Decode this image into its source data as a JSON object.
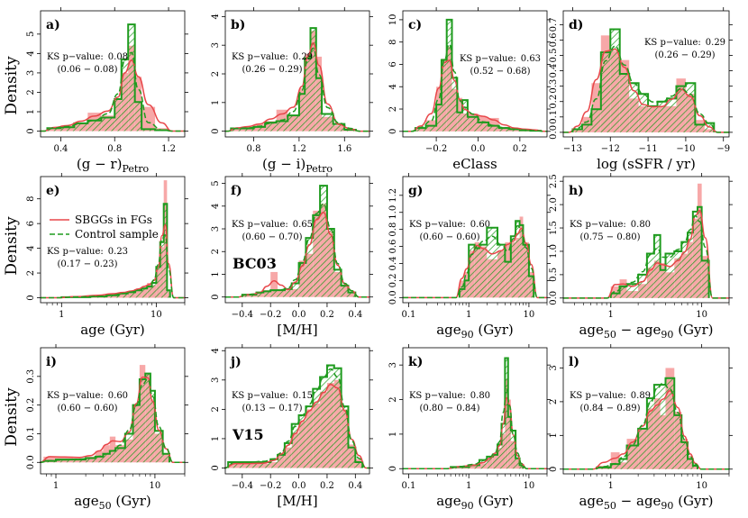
{
  "figure": {
    "y_axis_label": "Density",
    "legend": {
      "sample_label": "SBGGs in FGs",
      "control_label": "Control sample"
    },
    "colors": {
      "sample_fill": "#f7a8a8",
      "sample_line": "#e8474a",
      "control_line": "#1e9b1e"
    }
  },
  "chart_data": [
    {
      "id": "a",
      "type": "bar",
      "panel_label": "a)",
      "xlabel": "(g − r)",
      "xlabel_sub": "Petro",
      "xlim": [
        0.25,
        1.32
      ],
      "ylim": [
        -0.3,
        6.2
      ],
      "xticks": [
        0.4,
        0.8,
        1.2
      ],
      "xtick_labels": [
        "0.4",
        "0.8",
        "1.2"
      ],
      "yticks": [
        0,
        1,
        2,
        3,
        4,
        5
      ],
      "ytick_labels": [
        "0",
        "1",
        "2",
        "3",
        "4",
        "5"
      ],
      "show_ylabel": true,
      "ks_label": "KS p−value:",
      "ks_value": "0.08",
      "ks_range": "(0.06 − 0.08)",
      "edges": [
        0.3,
        0.4,
        0.5,
        0.6,
        0.7,
        0.8,
        0.85,
        0.9,
        0.95,
        1.0,
        1.1,
        1.2
      ],
      "sample": [
        0.15,
        0.3,
        0.4,
        0.95,
        0.8,
        1.6,
        3.0,
        4.4,
        2.8,
        1.25,
        0.15
      ],
      "control": [
        0.15,
        0.2,
        0.4,
        0.55,
        0.7,
        1.65,
        3.7,
        5.5,
        1.5,
        0.1,
        0.05
      ]
    },
    {
      "id": "b",
      "type": "bar",
      "panel_label": "b)",
      "xlabel": "(g − i)",
      "xlabel_sub": "Petro",
      "xlim": [
        0.55,
        1.82
      ],
      "ylim": [
        -0.2,
        4.2
      ],
      "xticks": [
        0.8,
        1.2,
        1.6
      ],
      "xtick_labels": [
        "0.8",
        "1.2",
        "1.6"
      ],
      "yticks": [
        0,
        1,
        2,
        3,
        4
      ],
      "ytick_labels": [
        "0",
        "1",
        "2",
        "3",
        "4"
      ],
      "show_ylabel": false,
      "ks_label": "KS p−value:",
      "ks_value": "0.29",
      "ks_range": "(0.26 − 0.29)",
      "edges": [
        0.6,
        0.7,
        0.8,
        0.9,
        1.0,
        1.1,
        1.2,
        1.25,
        1.3,
        1.35,
        1.4,
        1.5,
        1.6,
        1.7
      ],
      "sample": [
        0.1,
        0.15,
        0.25,
        0.35,
        0.75,
        0.55,
        1.5,
        2.7,
        3.5,
        2.6,
        0.5,
        0.2,
        0.05
      ],
      "control": [
        0.1,
        0.1,
        0.15,
        0.3,
        0.35,
        0.55,
        1.3,
        2.55,
        3.6,
        1.85,
        0.6,
        0.25,
        0.05
      ]
    },
    {
      "id": "c",
      "type": "bar",
      "panel_label": "c)",
      "xlabel": "eClass",
      "xlabel_sub": "",
      "xlim": [
        -0.36,
        0.33
      ],
      "ylim": [
        -0.5,
        10.8
      ],
      "xticks": [
        -0.2,
        0,
        0.2
      ],
      "xtick_labels": [
        "−0.2",
        "0.0",
        "0.2"
      ],
      "yticks": [
        0,
        2,
        4,
        6,
        8,
        10
      ],
      "ytick_labels": [
        "0",
        "2",
        "4",
        "6",
        "8",
        "10"
      ],
      "show_ylabel": false,
      "ks_label": "KS p−value:",
      "ks_value": "0.63",
      "ks_range": "(0.52 − 0.68)",
      "edges": [
        -0.3,
        -0.25,
        -0.2,
        -0.175,
        -0.15,
        -0.125,
        -0.1,
        -0.075,
        -0.05,
        0,
        0.05,
        0.1,
        0.15,
        0.2,
        0.25,
        0.3
      ],
      "sample": [
        0.3,
        1.0,
        4.0,
        6.5,
        7.6,
        3.8,
        3.0,
        1.6,
        1.6,
        1.3,
        1.2,
        0.4,
        0.3,
        0.2,
        0.1
      ],
      "control": [
        0.3,
        0.5,
        2.4,
        6.4,
        10.0,
        4.8,
        1.7,
        2.8,
        1.3,
        0.8,
        0.5,
        0.3,
        0.2,
        0.1,
        0.05
      ]
    },
    {
      "id": "d",
      "type": "bar",
      "panel_label": "d)",
      "xlabel": "log (sSFR / yr)",
      "xlabel_sub": "",
      "xlim": [
        -13.25,
        -8.85
      ],
      "ylim": [
        -0.03,
        0.79
      ],
      "xticks": [
        -13,
        -12,
        -11,
        -10,
        -9
      ],
      "xtick_labels": [
        "−13",
        "−12",
        "−11",
        "−10",
        "−9"
      ],
      "yticks": [
        0,
        0.1,
        0.2,
        0.3,
        0.4,
        0.5,
        0.6,
        0.7
      ],
      "ytick_labels": [
        "0.0",
        "0.1",
        "0.2",
        "0.3",
        "0.4",
        "0.5",
        "0.6",
        "0.7"
      ],
      "show_ylabel": false,
      "ks_label": "KS p−value:",
      "ks_value": "0.29",
      "ks_range": "(0.26 − 0.29)",
      "edges": [
        -13,
        -12.75,
        -12.5,
        -12.25,
        -12,
        -11.75,
        -11.5,
        -11.25,
        -11,
        -10.75,
        -10.5,
        -10.25,
        -10,
        -9.75,
        -9.5,
        -9.25
      ],
      "sample": [
        0.02,
        0.1,
        0.32,
        0.63,
        0.53,
        0.47,
        0.22,
        0.17,
        0.16,
        0.17,
        0.17,
        0.35,
        0.25,
        0.08,
        0.02
      ],
      "control": [
        0.02,
        0.05,
        0.15,
        0.52,
        0.67,
        0.38,
        0.32,
        0.25,
        0.17,
        0.2,
        0.22,
        0.3,
        0.32,
        0.05,
        0.06
      ]
    },
    {
      "id": "e",
      "type": "bar",
      "panel_label": "e)",
      "xlabel": "age (Gyr)",
      "xlabel_sub": "",
      "xscale": "log",
      "xlim": [
        0.6,
        20
      ],
      "ylim": [
        -0.4,
        9.8
      ],
      "xticks": [
        1,
        10
      ],
      "xtick_labels": [
        "1",
        "10"
      ],
      "minor_xticks": [
        0.7,
        0.8,
        0.9,
        2,
        3,
        4,
        5,
        6,
        7,
        8,
        9,
        20
      ],
      "yticks": [
        0,
        2,
        4,
        6,
        8
      ],
      "ytick_labels": [
        "0",
        "2",
        "4",
        "6",
        "8"
      ],
      "show_ylabel": true,
      "show_legend": true,
      "ks_label": "KS p−value:",
      "ks_value": "0.23",
      "ks_range": "(0.17 − 0.23)",
      "edges": [
        1,
        2,
        3,
        4,
        5,
        6,
        7,
        8,
        9,
        10,
        11,
        12,
        13,
        14
      ],
      "sample": [
        0.05,
        0.2,
        0.35,
        0.4,
        0.55,
        0.7,
        0.9,
        1.2,
        1.0,
        2.4,
        4.1,
        9.5,
        0.5
      ],
      "control": [
        0.05,
        0.1,
        0.2,
        0.35,
        0.45,
        0.6,
        0.75,
        0.9,
        1.2,
        2.5,
        4.5,
        7.6,
        0.6
      ]
    },
    {
      "id": "f",
      "type": "bar",
      "panel_label": "f)",
      "xlabel": "[M/H]",
      "xlabel_sub": "",
      "model_label": "BC03",
      "xlim": [
        -0.52,
        0.5
      ],
      "ylim": [
        -0.25,
        5.3
      ],
      "xticks": [
        -0.4,
        -0.2,
        0,
        0.2,
        0.4
      ],
      "xtick_labels": [
        "−0.4",
        "−0.2",
        "0.0",
        "0.2",
        "0.4"
      ],
      "yticks": [
        0,
        1,
        2,
        3,
        4,
        5
      ],
      "ytick_labels": [
        "0",
        "1",
        "2",
        "3",
        "4",
        "5"
      ],
      "show_ylabel": false,
      "ks_label": "KS p−value:",
      "ks_value": "0.65",
      "ks_range": "(0.60 − 0.70)",
      "edges": [
        -0.4,
        -0.35,
        -0.3,
        -0.25,
        -0.2,
        -0.15,
        -0.1,
        -0.05,
        0,
        0.05,
        0.1,
        0.15,
        0.2,
        0.25,
        0.3,
        0.35,
        0.4
      ],
      "sample": [
        0.1,
        0.1,
        0.2,
        0.3,
        1.1,
        0.35,
        0.3,
        0.35,
        1.6,
        1.9,
        3.8,
        4.1,
        2.9,
        1.1,
        0.5,
        0.2
      ],
      "control": [
        0.1,
        0.1,
        0.2,
        0.25,
        0.3,
        0.3,
        0.35,
        0.6,
        1.5,
        2.6,
        3.6,
        4.9,
        3.0,
        1.2,
        0.5,
        0.2
      ]
    },
    {
      "id": "g",
      "type": "bar",
      "panel_label": "g)",
      "xlabel": "age",
      "xlabel_sub": "90",
      "xlabel_tail": " (Gyr)",
      "xscale": "log",
      "xlim": [
        0.08,
        20
      ],
      "ylim": [
        -0.06,
        1.42
      ],
      "xticks": [
        0.1,
        1,
        10
      ],
      "xtick_labels": [
        "0.1",
        "1",
        "10"
      ],
      "minor_xticks": [
        0.2,
        0.3,
        0.4,
        0.5,
        0.6,
        0.7,
        0.8,
        0.9,
        2,
        3,
        4,
        5,
        6,
        7,
        8,
        9,
        20
      ],
      "yticks": [
        0,
        0.2,
        0.4,
        0.6,
        0.8,
        1.0,
        1.2
      ],
      "ytick_labels": [
        "0.0",
        "0.2",
        "0.4",
        "0.6",
        "0.8",
        "1.0",
        "1.2"
      ],
      "show_ylabel": false,
      "ks_label": "KS p−value:",
      "ks_value": "0.60",
      "ks_range": "(0.60 − 0.60)",
      "edges": [
        0.7,
        0.85,
        1,
        1.25,
        1.5,
        2,
        3,
        4,
        5,
        6,
        7,
        8,
        10,
        12
      ],
      "sample": [
        0.2,
        0.3,
        0.55,
        0.65,
        0.6,
        0.45,
        0.55,
        0.65,
        0.65,
        0.7,
        0.95,
        0.65,
        0.3
      ],
      "control": [
        0.1,
        0.2,
        0.62,
        0.58,
        0.62,
        0.82,
        0.62,
        0.42,
        0.72,
        0.9,
        0.85,
        0.62,
        0.25
      ]
    },
    {
      "id": "h",
      "type": "bar",
      "panel_label": "h)",
      "xlabel": "age",
      "xlabel_sub": "50",
      "xlabel_mid": " − age",
      "xlabel_sub2": "90",
      "xlabel_tail": " (Gyr)",
      "xscale": "log",
      "xlim": [
        0.3,
        20
      ],
      "ylim": [
        -0.1,
        2.6
      ],
      "xticks": [
        1,
        10
      ],
      "xtick_labels": [
        "1",
        "10"
      ],
      "minor_xticks": [
        0.4,
        0.5,
        0.6,
        0.7,
        0.8,
        0.9,
        2,
        3,
        4,
        5,
        6,
        7,
        8,
        9,
        20
      ],
      "yticks": [
        0,
        0.5,
        1.0,
        1.5,
        2.0,
        2.5
      ],
      "ytick_labels": [
        "0.0",
        "0.5",
        "1.0",
        "1.5",
        "2.0",
        "2.5"
      ],
      "show_ylabel": false,
      "ks_label": "KS p−value:",
      "ks_value": "0.80",
      "ks_range": "(0.75 − 0.80)",
      "edges": [
        1,
        1.25,
        1.5,
        2,
        2.5,
        3,
        3.5,
        4,
        5,
        6,
        7,
        8,
        9,
        10,
        12
      ],
      "sample": [
        0.25,
        0.4,
        0.15,
        0.3,
        0.65,
        0.8,
        0.75,
        0.55,
        0.85,
        0.95,
        1.2,
        1.7,
        2.45,
        0.9
      ],
      "control": [
        0.1,
        0.25,
        0.3,
        0.5,
        0.95,
        1.35,
        0.6,
        0.95,
        1.0,
        1.2,
        1.4,
        1.85,
        1.95,
        0.8
      ]
    },
    {
      "id": "i",
      "type": "bar",
      "panel_label": "i)",
      "xlabel": "age",
      "xlabel_sub": "50",
      "xlabel_tail": " (Gyr)",
      "xscale": "log",
      "xlim": [
        0.7,
        20
      ],
      "ylim": [
        -0.04,
        0.4
      ],
      "xticks": [
        1,
        10
      ],
      "xtick_labels": [
        "1",
        "10"
      ],
      "minor_xticks": [
        0.8,
        0.9,
        2,
        3,
        4,
        5,
        6,
        7,
        8,
        9,
        20
      ],
      "yticks": [
        0,
        0.1,
        0.2,
        0.3
      ],
      "ytick_labels": [
        "0.0",
        "0.1",
        "0.2",
        "0.3"
      ],
      "show_ylabel": true,
      "ks_label": "KS p−value:",
      "ks_value": "0.60",
      "ks_range": "(0.60 − 0.60)",
      "edges": [
        0.75,
        1,
        1.5,
        2,
        2.5,
        3,
        3.5,
        4,
        5,
        6,
        7,
        8,
        9,
        10,
        12,
        14
      ],
      "sample": [
        0.02,
        0.02,
        0.015,
        0.02,
        0.04,
        0.06,
        0.09,
        0.06,
        0.08,
        0.2,
        0.34,
        0.31,
        0.22,
        0.1,
        0.03
      ],
      "control": [
        0.005,
        0.01,
        0.01,
        0.015,
        0.02,
        0.03,
        0.04,
        0.05,
        0.1,
        0.2,
        0.29,
        0.31,
        0.25,
        0.11,
        0.03
      ]
    },
    {
      "id": "j",
      "type": "bar",
      "panel_label": "j)",
      "xlabel": "[M/H]",
      "xlabel_sub": "",
      "model_label": "V15",
      "xlim": [
        -0.52,
        0.5
      ],
      "ylim": [
        -0.2,
        4.1
      ],
      "xticks": [
        -0.4,
        -0.2,
        0,
        0.2,
        0.4
      ],
      "xtick_labels": [
        "−0.4",
        "−0.2",
        "0.0",
        "0.2",
        "0.4"
      ],
      "yticks": [
        0,
        1,
        2,
        3,
        4
      ],
      "ytick_labels": [
        "0",
        "1",
        "2",
        "3",
        "4"
      ],
      "show_ylabel": false,
      "ks_label": "KS p−value:",
      "ks_value": "0.15",
      "ks_range": "(0.13 − 0.17)",
      "edges": [
        -0.5,
        -0.4,
        -0.3,
        -0.2,
        -0.15,
        -0.1,
        -0.05,
        0,
        0.05,
        0.1,
        0.15,
        0.2,
        0.25,
        0.3,
        0.35,
        0.4,
        0.45
      ],
      "sample": [
        0.15,
        0.15,
        0.15,
        0.2,
        0.5,
        0.7,
        1.2,
        1.6,
        2.0,
        2.2,
        2.6,
        2.9,
        3.0,
        2.0,
        0.8,
        0.3
      ],
      "control": [
        0.2,
        0.2,
        0.2,
        0.3,
        0.45,
        0.85,
        1.5,
        1.8,
        2.1,
        2.7,
        3.1,
        3.5,
        3.4,
        2.1,
        0.7,
        0.2
      ]
    },
    {
      "id": "k",
      "type": "bar",
      "panel_label": "k)",
      "xlabel": "age",
      "xlabel_sub": "90",
      "xlabel_tail": " (Gyr)",
      "xscale": "log",
      "xlim": [
        0.08,
        20
      ],
      "ylim": [
        -0.15,
        3.5
      ],
      "xticks": [
        0.1,
        1,
        10
      ],
      "xtick_labels": [
        "0.1",
        "1",
        "10"
      ],
      "minor_xticks": [
        0.2,
        0.3,
        0.4,
        0.5,
        0.6,
        0.7,
        0.8,
        0.9,
        2,
        3,
        4,
        5,
        6,
        7,
        8,
        9,
        20
      ],
      "yticks": [
        0,
        1,
        2,
        3
      ],
      "ytick_labels": [
        "0",
        "1",
        "2",
        "3"
      ],
      "show_ylabel": false,
      "ks_label": "KS p−value:",
      "ks_value": "0.80",
      "ks_range": "(0.80 − 0.84)",
      "edges": [
        0.5,
        1,
        1.5,
        2,
        2.5,
        3,
        3.5,
        4,
        4.5,
        5,
        6,
        7,
        8
      ],
      "sample": [
        0.05,
        0.1,
        0.15,
        0.3,
        0.45,
        0.6,
        1.0,
        2.6,
        2.0,
        0.8,
        0.3,
        0.1
      ],
      "control": [
        0.05,
        0.1,
        0.25,
        0.35,
        0.4,
        0.7,
        1.3,
        3.2,
        1.5,
        1.1,
        0.3,
        0.1
      ]
    },
    {
      "id": "l",
      "type": "bar",
      "panel_label": "l)",
      "xlabel": "age",
      "xlabel_sub": "50",
      "xlabel_mid": " − age",
      "xlabel_sub2": "90",
      "xlabel_tail": " (Gyr)",
      "xscale": "log",
      "xlim": [
        0.3,
        20
      ],
      "ylim": [
        -0.14,
        3.6
      ],
      "xticks": [
        1,
        10
      ],
      "xtick_labels": [
        "1",
        "10"
      ],
      "minor_xticks": [
        0.4,
        0.5,
        0.6,
        0.7,
        0.8,
        0.9,
        2,
        3,
        4,
        5,
        6,
        7,
        8,
        9,
        20
      ],
      "yticks": [
        0,
        1,
        2,
        3
      ],
      "ytick_labels": [
        "0",
        "1",
        "2",
        "3"
      ],
      "show_ylabel": false,
      "ks_label": "KS p−value:",
      "ks_value": "0.89",
      "ks_range": "(0.84 − 0.89)",
      "edges": [
        0.7,
        1,
        1.25,
        1.5,
        2,
        2.5,
        3,
        3.5,
        4,
        5,
        6,
        7,
        8,
        9
      ],
      "sample": [
        0.1,
        0.5,
        0.2,
        0.9,
        1.2,
        1.8,
        2.1,
        1.6,
        3.0,
        1.7,
        0.9,
        0.4,
        0.1
      ],
      "control": [
        0.05,
        0.15,
        0.3,
        0.7,
        1.2,
        2.1,
        2.5,
        2.5,
        2.7,
        1.6,
        0.8,
        0.3,
        0.1
      ]
    }
  ]
}
